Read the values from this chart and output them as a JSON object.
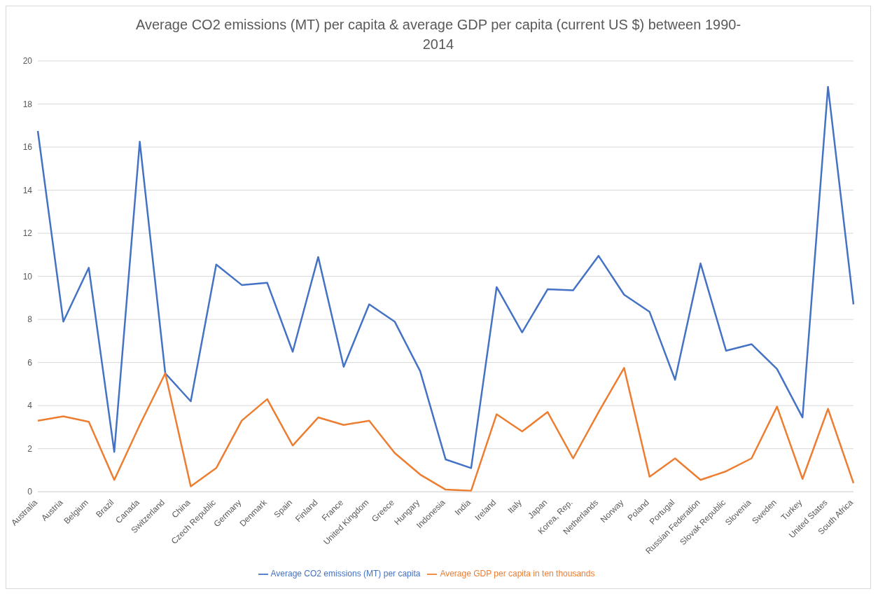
{
  "chart_data": {
    "type": "line",
    "title": "Average CO2 emissions (MT) per capita & average GDP per capita (current US $) between 1990-2014",
    "categories": [
      "Australia",
      "Austria",
      "Belgium",
      "Brazil",
      "Canada",
      "Switzerland",
      "China",
      "Czech Republic",
      "Germany",
      "Denmark",
      "Spain",
      "Finland",
      "France",
      "United Kingdom",
      "Greece",
      "Hungary",
      "Indonesia",
      "India",
      "Ireland",
      "Italy",
      "Japan",
      "Korea, Rep.",
      "Netherlands",
      "Norway",
      "Poland",
      "Portugal",
      "Russian Federation",
      "Slovak Republic",
      "Slovenia",
      "Sweden",
      "Turkey",
      "United States",
      "South Africa"
    ],
    "series": [
      {
        "name": "Average CO2 emissions (MT) per capita",
        "color": "#4472c4",
        "values": [
          16.75,
          7.9,
          10.4,
          1.85,
          16.25,
          5.5,
          4.2,
          10.55,
          9.6,
          9.7,
          6.5,
          10.9,
          5.8,
          8.7,
          7.9,
          5.6,
          1.5,
          1.1,
          9.5,
          7.4,
          9.4,
          9.35,
          10.95,
          9.15,
          8.35,
          5.2,
          10.6,
          6.55,
          6.85,
          5.7,
          3.45,
          18.8,
          8.7
        ]
      },
      {
        "name": "Average GDP per capita in ten thousands",
        "color": "#ed7d31",
        "values": [
          3.3,
          3.5,
          3.25,
          0.55,
          3.1,
          5.5,
          0.25,
          1.1,
          3.3,
          4.3,
          2.15,
          3.45,
          3.1,
          3.3,
          1.8,
          0.8,
          0.1,
          0.05,
          3.6,
          2.8,
          3.7,
          1.55,
          3.7,
          5.75,
          0.7,
          1.55,
          0.55,
          0.95,
          1.55,
          3.95,
          0.6,
          3.85,
          0.4
        ]
      }
    ],
    "ylim": [
      0,
      20
    ],
    "yticks": [
      0,
      2,
      4,
      6,
      8,
      10,
      12,
      14,
      16,
      18,
      20
    ],
    "grid": "y",
    "legend": "bottom",
    "marker": "none",
    "line_style": "solid"
  }
}
